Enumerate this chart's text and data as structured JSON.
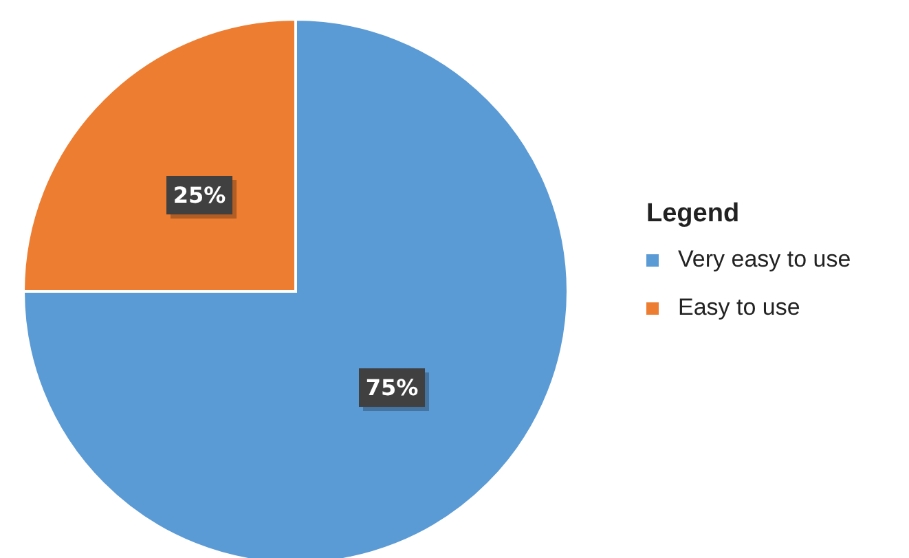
{
  "chart_data": {
    "type": "pie",
    "legend_title": "Legend",
    "legend": "right",
    "categories": [
      "Very easy to use",
      "Easy to use"
    ],
    "values": [
      75,
      25
    ],
    "colors": [
      "#5b9bd5",
      "#ed7d31"
    ],
    "value_labels": [
      "75%",
      "25%"
    ]
  }
}
